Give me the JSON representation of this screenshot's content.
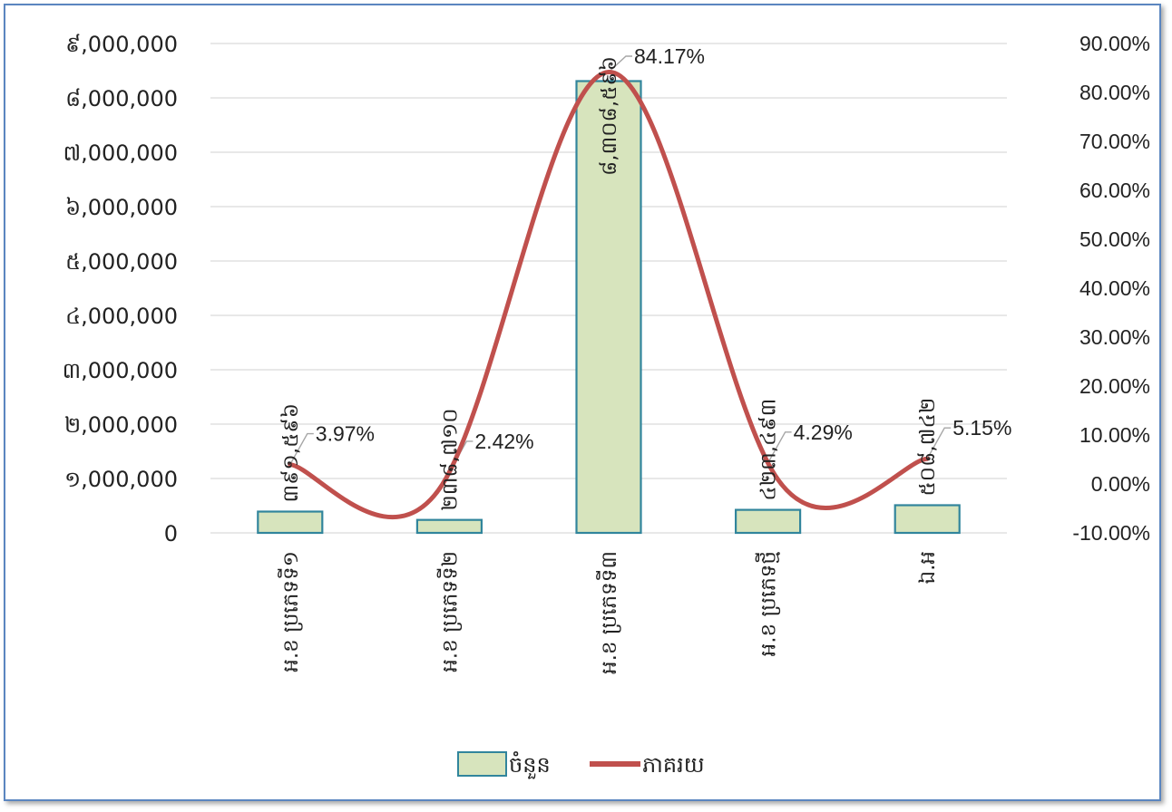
{
  "chart_data": {
    "type": "bar",
    "categories": [
      "អ.ខ ប្រភេទទី១",
      "អ.ខ ប្រភេទទី២",
      "អ.ខ ប្រភេទទី៣",
      "អ.ខ ប្រភេទថ្មី",
      "ឯ.អ"
    ],
    "series": [
      {
        "name": "ចំនួន",
        "type": "bar",
        "axis": "left",
        "color": "#d7e4bd",
        "values": [
          391596,
          238710,
          8308596,
          423493,
          508742
        ],
        "labels": [
          "៣៩១,៥៩៦",
          "២៣៨,៧១០",
          "៨,៣០៨,៥៩៦",
          "៤២៣,៤៩៣",
          "៥០៨,៧៤២"
        ]
      },
      {
        "name": "ភាគរយ",
        "type": "line",
        "smooth": true,
        "axis": "right",
        "color": "#c0504d",
        "values": [
          3.97,
          2.42,
          84.17,
          4.29,
          5.15
        ],
        "labels": [
          "3.97%",
          "2.42%",
          "84.17%",
          "4.29%",
          "5.15%"
        ]
      }
    ],
    "y_left": {
      "min": 0,
      "max": 9000000,
      "ticks": [
        "0",
        "១,000,000",
        "២,000,000",
        "៣,000,000",
        "៤,000,000",
        "៥,000,000",
        "៦,000,000",
        "៧,000,000",
        "៨,000,000",
        "៩,000,000"
      ]
    },
    "y_right": {
      "min": -10,
      "max": 90,
      "ticks": [
        "-10.00%",
        "0.00%",
        "10.00%",
        "20.00%",
        "30.00%",
        "40.00%",
        "50.00%",
        "60.00%",
        "70.00%",
        "80.00%",
        "90.00%"
      ]
    },
    "grid": true,
    "legend": "bottom",
    "title": "",
    "xlabel": "",
    "ylabel": ""
  }
}
